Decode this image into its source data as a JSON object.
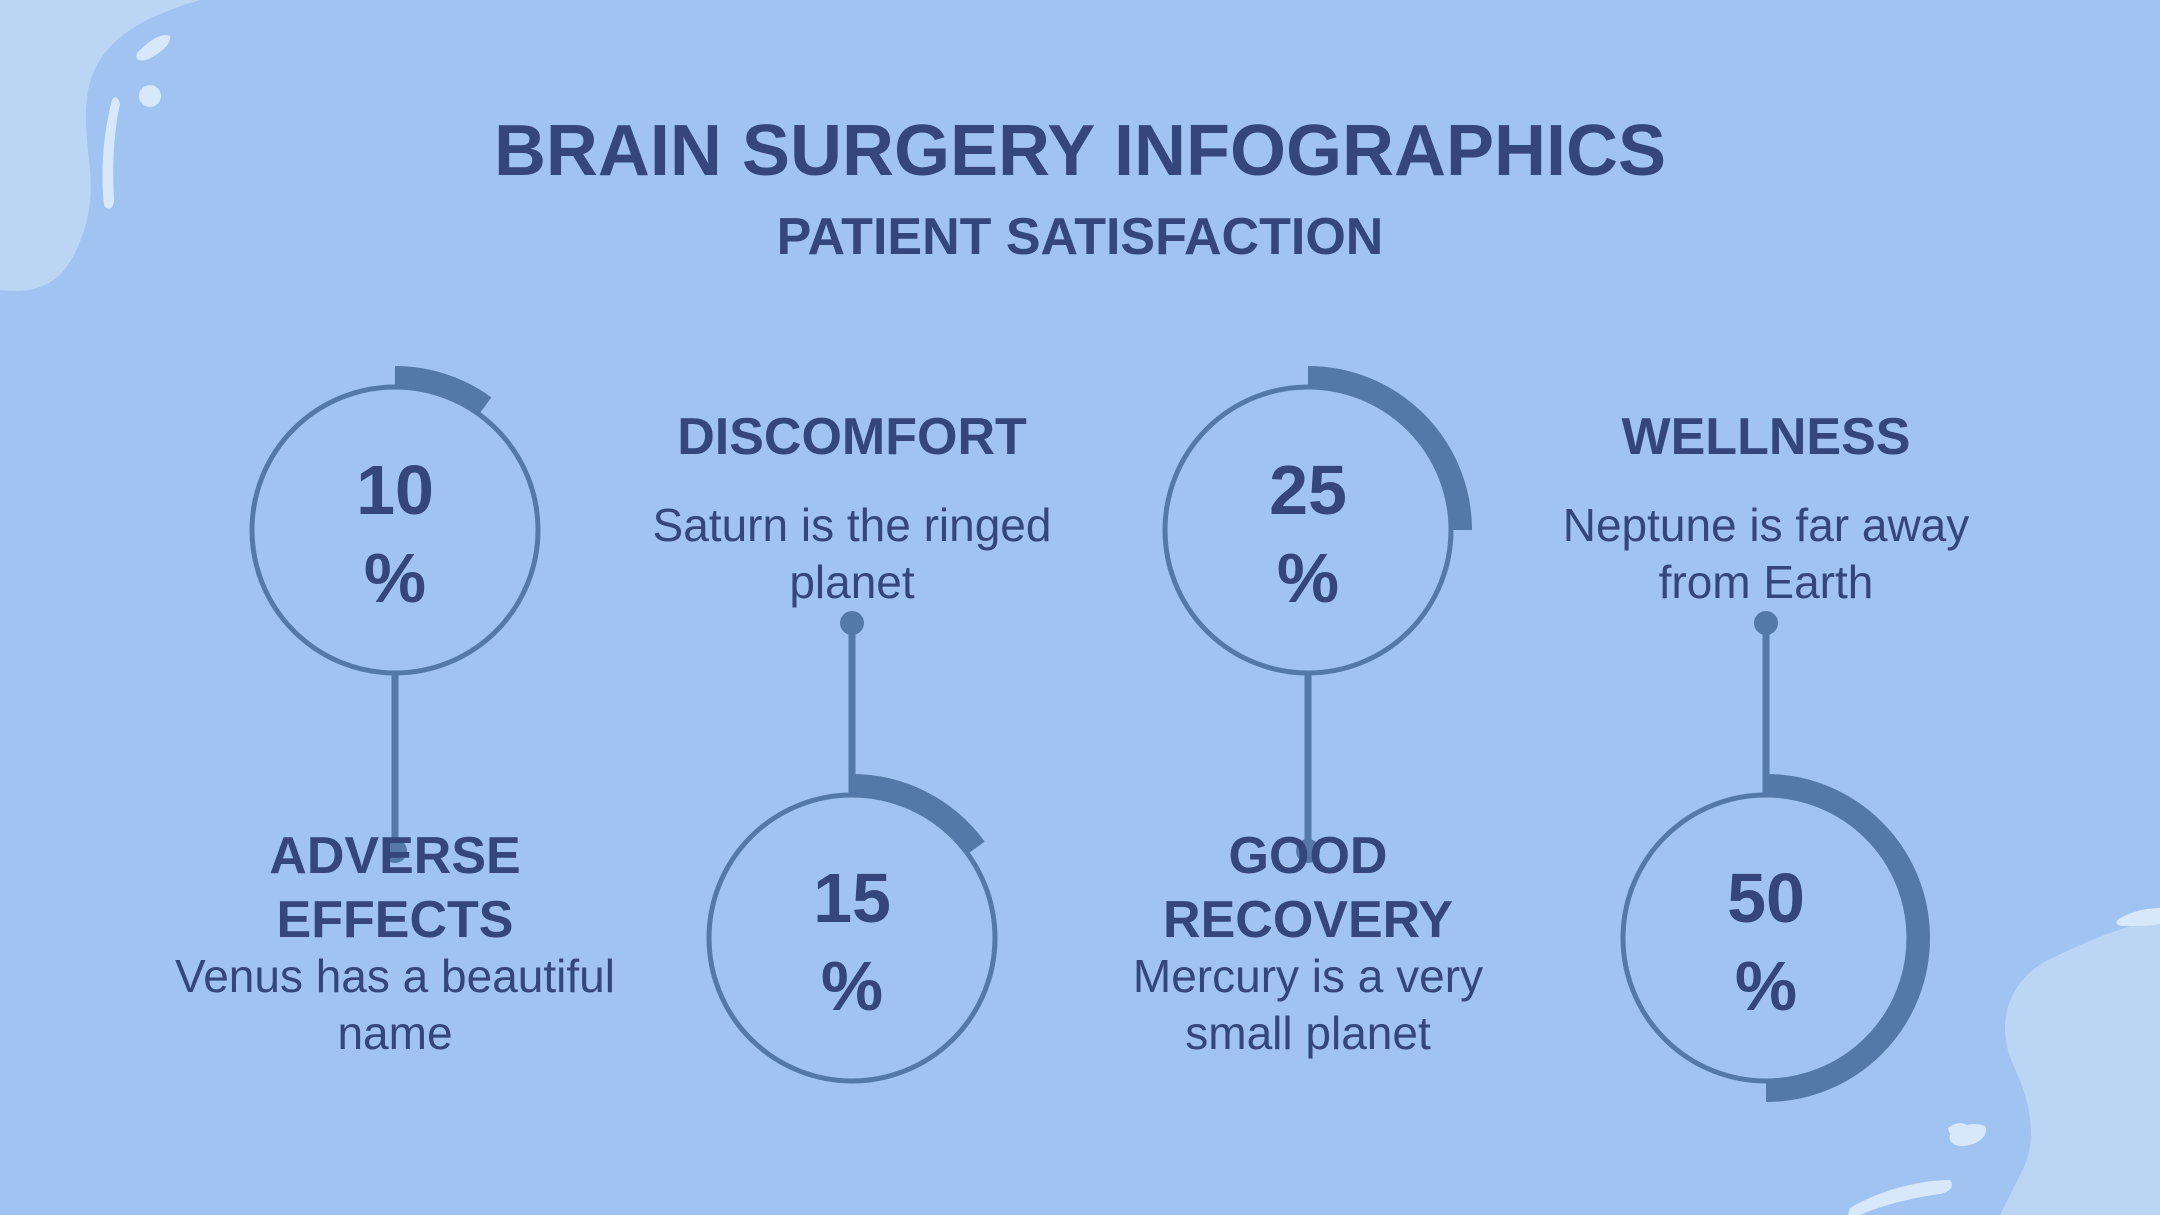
{
  "title": "BRAIN SURGERY INFOGRAPHICS",
  "subtitle": "PATIENT SATISFACTION",
  "colors": {
    "background": "#a0c3f1",
    "text": "#34467c",
    "ring": "#5479a8",
    "blob": "#bbd6f5"
  },
  "items": [
    {
      "value_label": "10",
      "percent_sign": "%",
      "value": 10,
      "title": "ADVERSE EFFECTS",
      "description": "Venus has a beautiful name"
    },
    {
      "value_label": "15",
      "percent_sign": "%",
      "value": 15,
      "title": "DISCOMFORT",
      "description": "Saturn is the ringed planet"
    },
    {
      "value_label": "25",
      "percent_sign": "%",
      "value": 25,
      "title": "GOOD RECOVERY",
      "description": "Mercury is a very small planet"
    },
    {
      "value_label": "50",
      "percent_sign": "%",
      "value": 50,
      "title": "WELLNESS",
      "description": "Neptune is far away from Earth"
    }
  ]
}
